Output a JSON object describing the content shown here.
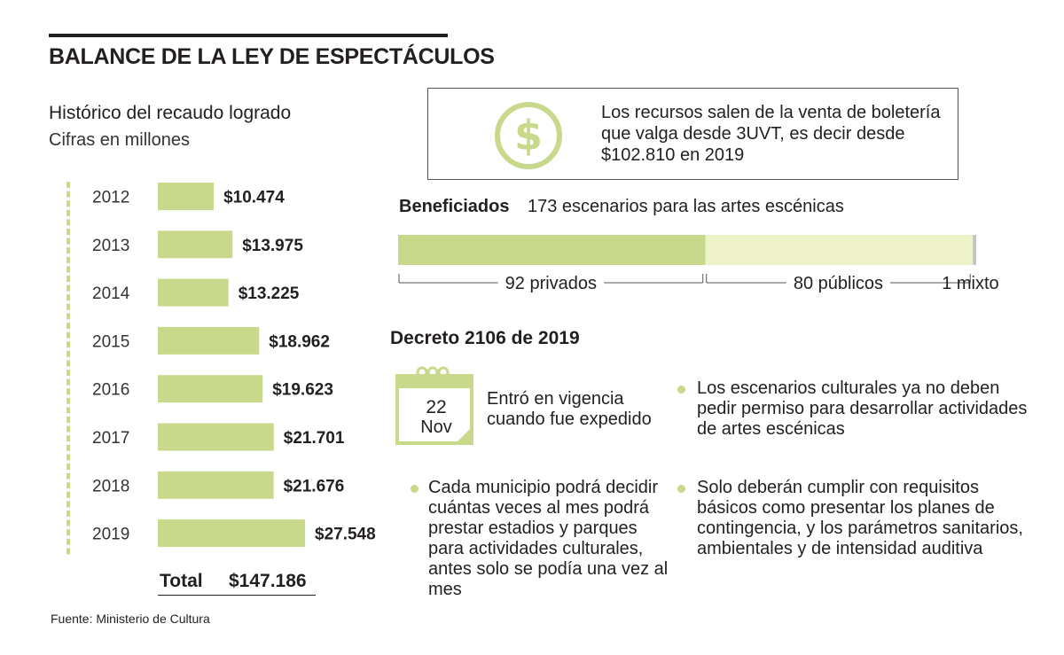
{
  "header": {
    "title": "BALANCE DE LA LEY DE ESPECTÁCULOS",
    "subtitle": "Histórico del recaudo logrado",
    "units": "Cifras en millones"
  },
  "chart_data": [
    {
      "type": "bar",
      "orientation": "horizontal",
      "title": "Histórico del recaudo logrado",
      "subtitle": "Cifras en millones",
      "categories": [
        "2012",
        "2013",
        "2014",
        "2015",
        "2016",
        "2017",
        "2018",
        "2019"
      ],
      "values": [
        10474,
        13975,
        13225,
        18962,
        19623,
        21701,
        21676,
        27548
      ],
      "value_labels": [
        "$10.474",
        "$13.975",
        "$13.225",
        "$18.962",
        "$19.623",
        "$21.701",
        "$21.676",
        "$27.548"
      ],
      "xlim": [
        0,
        27548
      ],
      "grid": false,
      "color": "#c9d98b"
    },
    {
      "type": "bar",
      "orientation": "horizontal-stacked",
      "title": "Beneficiados",
      "subtitle": "173 escenarios para las artes escénicas",
      "categories": [
        "privados",
        "públicos",
        "mixto"
      ],
      "values": [
        92,
        80,
        1
      ],
      "labels": [
        "92 privados",
        "80 públicos",
        "1 mixto"
      ],
      "colors": [
        "#c9d98b",
        "#eef2c8",
        "#c3c4c7"
      ]
    }
  ],
  "total": {
    "label": "Total",
    "value": "$147.186"
  },
  "source": "Fuente: Ministerio de Cultura",
  "info": {
    "text": "Los recursos salen de la venta de boletería que valga desde 3UVT, es decir desde $102.810 en 2019"
  },
  "beneficiados": {
    "label": "Beneficiados",
    "text": "173 escenarios para las artes escénicas"
  },
  "decreto": {
    "title": "Decreto 2106 de 2019",
    "calendar_day": "22",
    "calendar_month": "Nov",
    "vigencia": "Entró en vigencia cuando fue expedido",
    "bullets": [
      "Los escenarios culturales ya no deben pedir permiso para desarrollar actividades de artes escénicas",
      "Cada municipio podrá decidir cuántas veces al mes podrá prestar estadios y parques para actividades culturales, antes solo se podía una vez al mes",
      "Solo deberán cumplir con requisitos básicos como presentar los planes de contingencia, y los parámetros sanitarios, ambientales y de intensidad auditiva"
    ]
  },
  "colors": {
    "accent": "#c9d98b",
    "accent_light": "#eef2c8",
    "grey": "#c3c4c7",
    "text": "#231f20",
    "icon": "#c9d98b"
  },
  "icons": {
    "money": "dollar-coin-icon",
    "calendar": "calendar-icon"
  }
}
